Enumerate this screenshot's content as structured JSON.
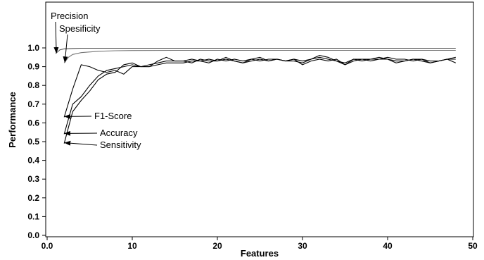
{
  "chart_data": {
    "type": "line",
    "xlabel": "Features",
    "ylabel": "Performance",
    "xlim": [
      0,
      50
    ],
    "ylim": [
      0,
      1.15
    ],
    "xticks": [
      0,
      10,
      20,
      30,
      40,
      50
    ],
    "xtick_labels": [
      "0.0",
      "10",
      "20",
      "30",
      "40",
      "50"
    ],
    "yticks": [
      0.0,
      0.1,
      0.2,
      0.3,
      0.4,
      0.5,
      0.6,
      0.7,
      0.8,
      0.9,
      1.0
    ],
    "ytick_labels": [
      "0.0",
      "0.1",
      "0.2",
      "0.3",
      "0.4",
      "0.5",
      "0.6",
      "0.7",
      "0.8",
      "0.9",
      "1.0"
    ],
    "grid": false,
    "series": [
      {
        "name": "Precision",
        "color": "#555555",
        "x": [
          1,
          1.5,
          2,
          3,
          4,
          6,
          8,
          10,
          15,
          20,
          25,
          30,
          35,
          40,
          45,
          48
        ],
        "y": [
          0.97,
          0.99,
          0.995,
          0.997,
          0.998,
          0.998,
          0.998,
          0.998,
          0.998,
          0.998,
          0.998,
          0.998,
          0.998,
          0.998,
          0.998,
          0.998
        ]
      },
      {
        "name": "Spesificity",
        "color": "#777777",
        "x": [
          2,
          2.5,
          3,
          4,
          6,
          8,
          10,
          15,
          20,
          25,
          30,
          35,
          40,
          45,
          48
        ],
        "y": [
          0.92,
          0.95,
          0.965,
          0.975,
          0.982,
          0.985,
          0.986,
          0.987,
          0.987,
          0.987,
          0.987,
          0.987,
          0.987,
          0.987,
          0.987
        ]
      },
      {
        "name": "F1-Score",
        "color": "#000000",
        "x": [
          2,
          3,
          4,
          5,
          6,
          7,
          8,
          9,
          10,
          11,
          12,
          13,
          14,
          15,
          16,
          17,
          18,
          19,
          20,
          21,
          22,
          23,
          24,
          25,
          26,
          27,
          28,
          29,
          30,
          31,
          32,
          33,
          34,
          35,
          36,
          37,
          38,
          39,
          40,
          41,
          42,
          43,
          44,
          45,
          46,
          47,
          48
        ],
        "y": [
          0.63,
          0.78,
          0.91,
          0.9,
          0.88,
          0.87,
          0.88,
          0.86,
          0.9,
          0.9,
          0.91,
          0.92,
          0.93,
          0.93,
          0.93,
          0.94,
          0.93,
          0.92,
          0.94,
          0.93,
          0.94,
          0.93,
          0.94,
          0.93,
          0.94,
          0.94,
          0.93,
          0.94,
          0.93,
          0.94,
          0.95,
          0.94,
          0.93,
          0.91,
          0.93,
          0.94,
          0.94,
          0.94,
          0.95,
          0.94,
          0.94,
          0.93,
          0.94,
          0.93,
          0.93,
          0.94,
          0.95
        ]
      },
      {
        "name": "Accuracy",
        "color": "#000000",
        "x": [
          2,
          3,
          4,
          5,
          6,
          7,
          8,
          9,
          10,
          11,
          12,
          13,
          14,
          15,
          16,
          17,
          18,
          19,
          20,
          21,
          22,
          23,
          24,
          25,
          26,
          27,
          28,
          29,
          30,
          31,
          32,
          33,
          34,
          35,
          36,
          37,
          38,
          39,
          40,
          41,
          42,
          43,
          44,
          45,
          46,
          47,
          48
        ],
        "y": [
          0.54,
          0.7,
          0.74,
          0.8,
          0.85,
          0.88,
          0.89,
          0.9,
          0.91,
          0.9,
          0.9,
          0.93,
          0.95,
          0.93,
          0.93,
          0.92,
          0.94,
          0.93,
          0.93,
          0.95,
          0.93,
          0.92,
          0.93,
          0.94,
          0.93,
          0.94,
          0.93,
          0.93,
          0.92,
          0.94,
          0.96,
          0.95,
          0.93,
          0.92,
          0.94,
          0.94,
          0.93,
          0.94,
          0.94,
          0.93,
          0.93,
          0.94,
          0.94,
          0.92,
          0.93,
          0.94,
          0.94
        ]
      },
      {
        "name": "Sensitivity",
        "color": "#000000",
        "x": [
          2,
          3,
          4,
          5,
          6,
          7,
          8,
          9,
          10,
          11,
          12,
          13,
          14,
          15,
          16,
          17,
          18,
          19,
          20,
          21,
          22,
          23,
          24,
          25,
          26,
          27,
          28,
          29,
          30,
          31,
          32,
          33,
          34,
          35,
          36,
          37,
          38,
          39,
          40,
          41,
          42,
          43,
          44,
          45,
          46,
          47,
          48
        ],
        "y": [
          0.49,
          0.66,
          0.72,
          0.77,
          0.83,
          0.86,
          0.87,
          0.91,
          0.92,
          0.9,
          0.9,
          0.91,
          0.92,
          0.92,
          0.92,
          0.93,
          0.93,
          0.94,
          0.93,
          0.94,
          0.93,
          0.92,
          0.94,
          0.95,
          0.93,
          0.94,
          0.93,
          0.94,
          0.91,
          0.93,
          0.94,
          0.93,
          0.94,
          0.91,
          0.94,
          0.93,
          0.94,
          0.95,
          0.94,
          0.92,
          0.93,
          0.94,
          0.93,
          0.92,
          0.93,
          0.94,
          0.92
        ]
      }
    ],
    "annotations": [
      {
        "text": "Precision",
        "target": [
          1,
          0.97
        ],
        "label_position": "above"
      },
      {
        "text": "Spesificity",
        "target": [
          2,
          0.92
        ],
        "label_position": "above"
      },
      {
        "text": "F1-Score",
        "target": [
          2,
          0.63
        ],
        "label_position": "right"
      },
      {
        "text": "Accuracy",
        "target": [
          2,
          0.54
        ],
        "label_position": "right"
      },
      {
        "text": "Sensitivity",
        "target": [
          2,
          0.49
        ],
        "label_position": "right"
      }
    ]
  }
}
